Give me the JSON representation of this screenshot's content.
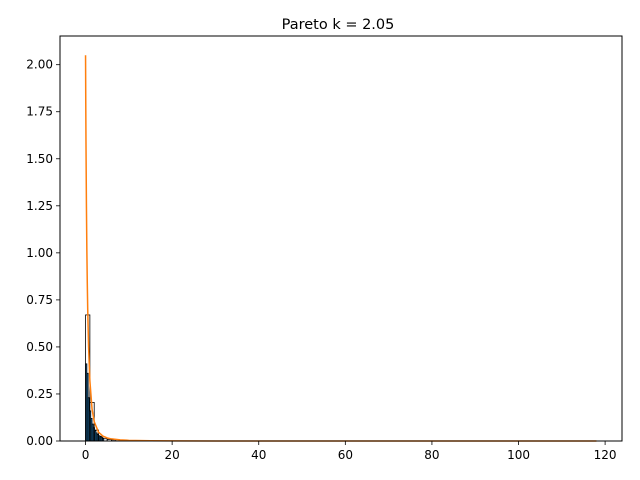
{
  "chart_data": {
    "type": "bar",
    "title": "Pareto k = 2.05",
    "xlabel": "",
    "ylabel": "",
    "xlim": [
      -5.9,
      123.9
    ],
    "ylim": [
      0,
      2.1525
    ],
    "grid": false,
    "legend": "none",
    "x_ticks": [
      0,
      20,
      40,
      60,
      80,
      100,
      120
    ],
    "y_ticks": [
      0.0,
      0.25,
      0.5,
      0.75,
      1.0,
      1.25,
      1.5,
      1.75,
      2.0
    ],
    "y_tick_labels": [
      "0.00",
      "0.25",
      "0.50",
      "0.75",
      "1.00",
      "1.25",
      "1.50",
      "1.75",
      "2.00"
    ],
    "x_tick_labels": [
      "0",
      "20",
      "40",
      "60",
      "80",
      "100",
      "120"
    ],
    "histograms": [
      {
        "kind": "unit",
        "color": "#ffffff",
        "edge_color": "#000000",
        "bins": [
          {
            "x0": 0,
            "x1": 1,
            "y": 0.67
          },
          {
            "x0": 1,
            "x1": 2,
            "y": 0.205
          },
          {
            "x0": 2,
            "x1": 3,
            "y": 0.058
          },
          {
            "x0": 3,
            "x1": 4,
            "y": 0.025
          },
          {
            "x0": 4,
            "x1": 5,
            "y": 0.012
          },
          {
            "x0": 5,
            "x1": 6,
            "y": 0.008
          },
          {
            "x0": 6,
            "x1": 7,
            "y": 0.006
          }
        ]
      },
      {
        "kind": "fine",
        "color": "#1f77b4",
        "edge_color": "#000000",
        "bins": [
          {
            "x0": 0.0,
            "x1": 0.3,
            "y": 0.41
          },
          {
            "x0": 0.3,
            "x1": 0.6,
            "y": 0.36
          },
          {
            "x0": 0.6,
            "x1": 0.9,
            "y": 0.23
          },
          {
            "x0": 0.9,
            "x1": 1.2,
            "y": 0.16
          },
          {
            "x0": 1.2,
            "x1": 1.5,
            "y": 0.12
          },
          {
            "x0": 1.5,
            "x1": 1.8,
            "y": 0.09
          },
          {
            "x0": 1.8,
            "x1": 2.1,
            "y": 0.07
          },
          {
            "x0": 2.1,
            "x1": 2.4,
            "y": 0.055
          },
          {
            "x0": 2.4,
            "x1": 2.7,
            "y": 0.043
          },
          {
            "x0": 2.7,
            "x1": 3.0,
            "y": 0.035
          },
          {
            "x0": 3.0,
            "x1": 3.3,
            "y": 0.028
          },
          {
            "x0": 3.3,
            "x1": 3.6,
            "y": 0.022
          },
          {
            "x0": 3.6,
            "x1": 3.9,
            "y": 0.018
          },
          {
            "x0": 3.9,
            "x1": 4.2,
            "y": 0.014
          }
        ]
      }
    ],
    "series": [
      {
        "type": "line",
        "color": "#ff7f0e",
        "x": [
          0,
          0.05,
          0.1,
          0.2,
          0.3,
          0.4,
          0.5,
          0.7,
          1.0,
          1.5,
          2.0,
          3.0,
          4.0,
          5.0,
          6.0,
          8.0,
          10,
          15,
          20,
          30,
          40,
          60,
          80,
          100,
          118
        ],
        "y": [
          2.05,
          1.8,
          1.59,
          1.26,
          1.02,
          0.84,
          0.7,
          0.5,
          0.32,
          0.17,
          0.103,
          0.047,
          0.026,
          0.016,
          0.011,
          0.0058,
          0.0035,
          0.0013,
          0.0006,
          0.0002,
          0.0001,
          3e-05,
          1e-05,
          6e-06,
          4e-06
        ]
      }
    ]
  }
}
